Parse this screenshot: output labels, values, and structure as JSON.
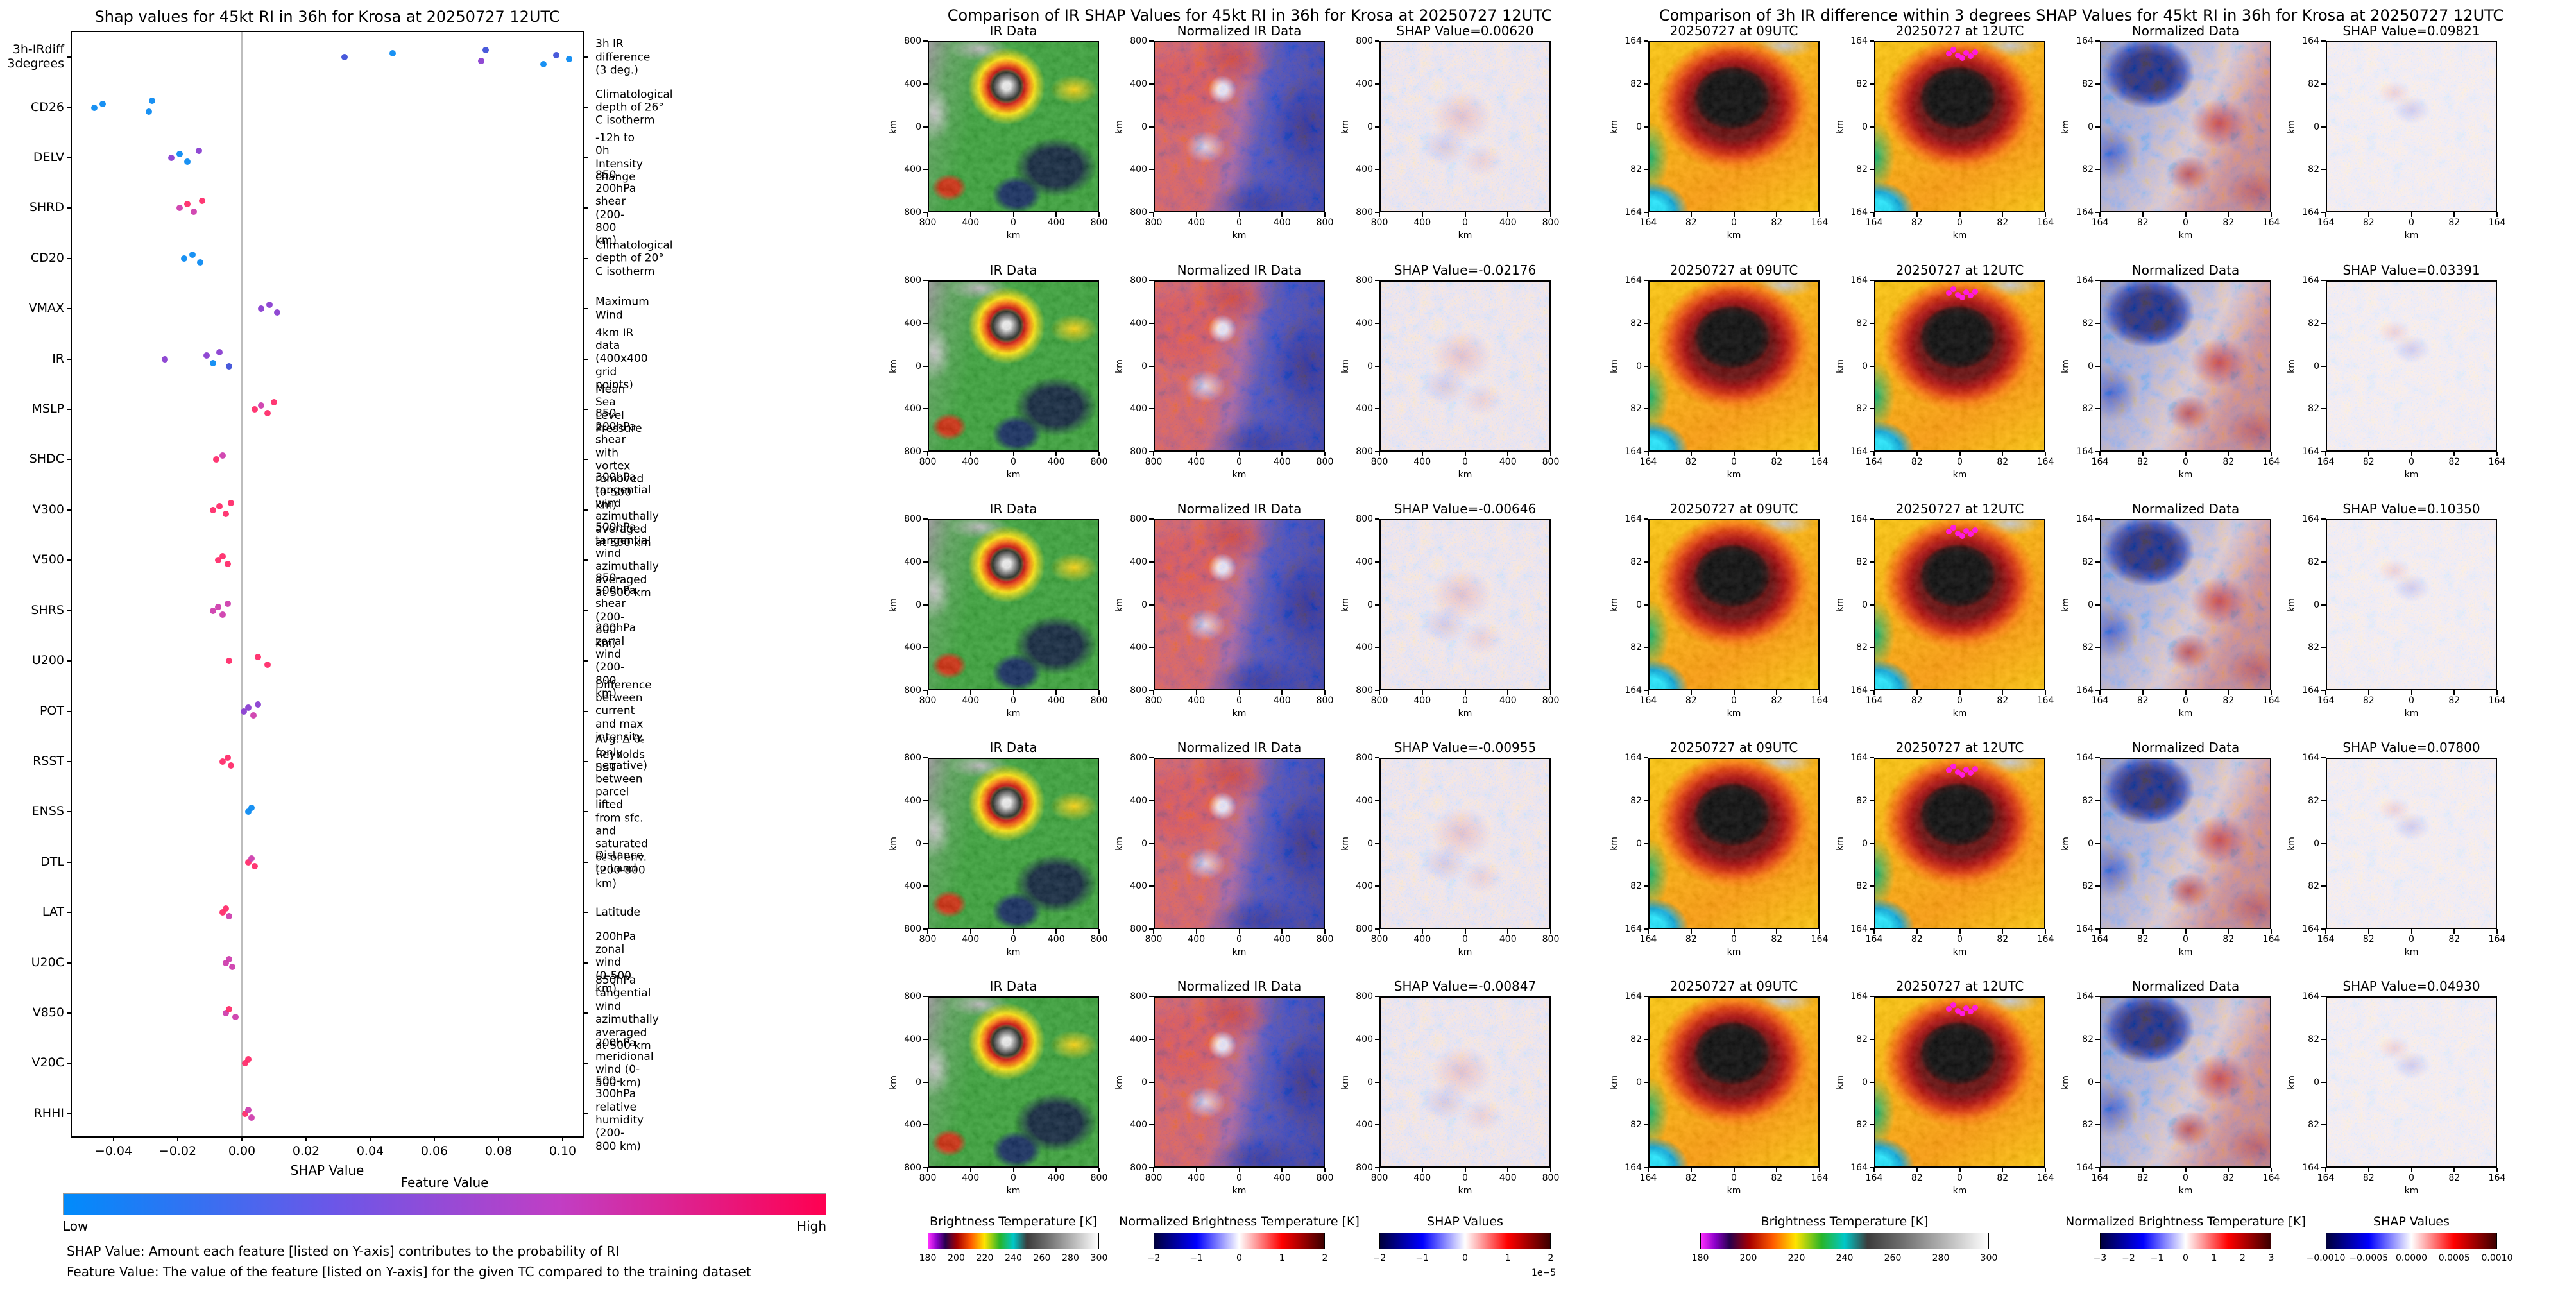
{
  "beeswarm": {
    "title": "Shap values for 45kt RI in 36h for Krosa at 20250727 12UTC",
    "xlabel": "SHAP Value",
    "xmin": -0.053,
    "xmax": 0.107,
    "xticks": [
      [
        "−0.04",
        -0.04
      ],
      [
        "−0.02",
        -0.02
      ],
      [
        "0.00",
        0
      ],
      [
        "0.02",
        0.02
      ],
      [
        "0.04",
        0.04
      ],
      [
        "0.06",
        0.06
      ],
      [
        "0.08",
        0.08
      ],
      [
        "0.10",
        0.1
      ]
    ],
    "palette": {
      "b": "#0d8bf2",
      "n": "#3f51d9",
      "p": "#8a3fd1",
      "m": "#cf3fae",
      "r": "#ff2d6b"
    },
    "features": [
      {
        "code": "3h-IRdiff\n3degrees",
        "desc": "3h IR difference (3 deg.)",
        "dots": [
          [
            0.032,
            "n"
          ],
          [
            0.047,
            "b"
          ],
          [
            0.0745,
            "p"
          ],
          [
            0.076,
            "n"
          ],
          [
            0.094,
            "b"
          ],
          [
            0.098,
            "n"
          ],
          [
            0.102,
            "b"
          ]
        ]
      },
      {
        "code": "CD26",
        "desc": "Climatological depth of 26° C isotherm",
        "dots": [
          [
            -0.046,
            "b"
          ],
          [
            -0.0435,
            "b"
          ],
          [
            -0.029,
            "b"
          ],
          [
            -0.028,
            "b"
          ]
        ]
      },
      {
        "code": "DELV",
        "desc": "-12h to 0h Intensity change",
        "dots": [
          [
            -0.022,
            "p"
          ],
          [
            -0.0195,
            "b"
          ],
          [
            -0.017,
            "b"
          ],
          [
            -0.0135,
            "p"
          ]
        ]
      },
      {
        "code": "SHRD",
        "desc": "850-200hPa shear (200-800 km)",
        "dots": [
          [
            -0.0195,
            "m"
          ],
          [
            -0.017,
            "r"
          ],
          [
            -0.015,
            "m"
          ],
          [
            -0.0125,
            "r"
          ]
        ]
      },
      {
        "code": "CD20",
        "desc": "Climatological depth of 20° C isotherm",
        "dots": [
          [
            -0.018,
            "b"
          ],
          [
            -0.0155,
            "b"
          ],
          [
            -0.013,
            "b"
          ]
        ]
      },
      {
        "code": "VMAX",
        "desc": "Maximum Wind",
        "dots": [
          [
            0.006,
            "p"
          ],
          [
            0.0085,
            "p"
          ],
          [
            0.011,
            "p"
          ]
        ]
      },
      {
        "code": "IR",
        "desc": "4km IR data (400x400 grid points)",
        "dots": [
          [
            -0.024,
            "p"
          ],
          [
            -0.011,
            "p"
          ],
          [
            -0.009,
            "b"
          ],
          [
            -0.007,
            "p"
          ],
          [
            -0.004,
            "n"
          ]
        ]
      },
      {
        "code": "MSLP",
        "desc": "Mean Sea Level Pressure",
        "dots": [
          [
            0.004,
            "r"
          ],
          [
            0.006,
            "m"
          ],
          [
            0.008,
            "r"
          ],
          [
            0.01,
            "r"
          ]
        ]
      },
      {
        "code": "SHDC",
        "desc": "850-200hPa shear with\nvortex removed (0-500 km)",
        "dots": [
          [
            -0.008,
            "r"
          ],
          [
            -0.006,
            "m"
          ]
        ]
      },
      {
        "code": "V300",
        "desc": "300hPa tangential wind azimuthally\naveraged at 500 km",
        "dots": [
          [
            -0.009,
            "r"
          ],
          [
            -0.007,
            "r"
          ],
          [
            -0.005,
            "r"
          ],
          [
            -0.0035,
            "r"
          ]
        ]
      },
      {
        "code": "V500",
        "desc": "500hPa tangential wind azimuthally\naveraged at 500 km",
        "dots": [
          [
            -0.0075,
            "r"
          ],
          [
            -0.006,
            "r"
          ],
          [
            -0.0045,
            "r"
          ]
        ]
      },
      {
        "code": "SHRS",
        "desc": "850-500hPa shear (200-800 km)",
        "dots": [
          [
            -0.009,
            "m"
          ],
          [
            -0.0075,
            "m"
          ],
          [
            -0.006,
            "m"
          ],
          [
            -0.0045,
            "m"
          ]
        ]
      },
      {
        "code": "U200",
        "desc": "200hPa zonal wind (200-800 km)",
        "dots": [
          [
            -0.004,
            "r"
          ],
          [
            0.005,
            "r"
          ],
          [
            0.008,
            "r"
          ]
        ]
      },
      {
        "code": "POT",
        "desc": "Difference between current and max intensity",
        "dots": [
          [
            0.0005,
            "p"
          ],
          [
            0.002,
            "p"
          ],
          [
            0.0035,
            "m"
          ],
          [
            0.005,
            "p"
          ]
        ]
      },
      {
        "code": "RSST",
        "desc": "Reynolds SST",
        "dots": [
          [
            -0.006,
            "r"
          ],
          [
            -0.0045,
            "r"
          ],
          [
            -0.0035,
            "r"
          ]
        ]
      },
      {
        "code": "ENSS",
        "desc": "Avg. Δ θₑ (only negative) between parcel lifted\nfrom sfc. and saturated θₑ of env. (200-800 km)",
        "dots": [
          [
            0.002,
            "b"
          ],
          [
            0.003,
            "b"
          ]
        ]
      },
      {
        "code": "DTL",
        "desc": "Distance to Land",
        "dots": [
          [
            0.002,
            "r"
          ],
          [
            0.003,
            "m"
          ],
          [
            0.004,
            "r"
          ]
        ]
      },
      {
        "code": "LAT",
        "desc": "Latitude",
        "dots": [
          [
            -0.006,
            "r"
          ],
          [
            -0.005,
            "r"
          ],
          [
            -0.004,
            "m"
          ]
        ]
      },
      {
        "code": "U20C",
        "desc": "200hPa zonal wind (0-500 km)",
        "dots": [
          [
            -0.005,
            "m"
          ],
          [
            -0.004,
            "m"
          ],
          [
            -0.003,
            "m"
          ]
        ]
      },
      {
        "code": "V850",
        "desc": "850hPa tangential wind azimuthally\naveraged at 500 km",
        "dots": [
          [
            -0.005,
            "m"
          ],
          [
            -0.004,
            "r"
          ],
          [
            -0.002,
            "m"
          ]
        ]
      },
      {
        "code": "V20C",
        "desc": "200hPa meridional wind (0-500 km)",
        "dots": [
          [
            0.001,
            "r"
          ],
          [
            0.002,
            "r"
          ]
        ]
      },
      {
        "code": "RHHI",
        "desc": "500-300hPa relative humidity (200-800 km)",
        "dots": [
          [
            0.001,
            "r"
          ],
          [
            0.002,
            "m"
          ],
          [
            0.003,
            "m"
          ]
        ]
      }
    ],
    "colorbar": {
      "title": "Feature Value",
      "low": "Low",
      "high": "High"
    },
    "footnotes": [
      "SHAP Value: Amount each feature [listed on Y-axis] contributes to the probability of RI",
      "Feature Value: The value of the feature [listed on Y-axis] for the given TC compared to the training dataset"
    ]
  },
  "ir_panel": {
    "title": "Comparison of IR SHAP Values for 45kt RI in 36h for Krosa at 20250727 12UTC",
    "col_titles": [
      "IR Data",
      "Normalized IR Data"
    ],
    "shap_titles": [
      "SHAP Value=0.00620",
      "SHAP Value=-0.02176",
      "SHAP Value=-0.00646",
      "SHAP Value=-0.00955",
      "SHAP Value=-0.00847"
    ],
    "ticks": [
      "800",
      "400",
      "0",
      "400",
      "800"
    ],
    "axis_unit": "km",
    "colorbars": [
      {
        "label": "Brightness Temperature [K]",
        "ticks": [
          "180",
          "200",
          "220",
          "240",
          "260",
          "280",
          "300"
        ]
      },
      {
        "label": "Normalized Brightness Temperature [K]",
        "ticks": [
          "−2",
          "−1",
          "0",
          "1",
          "2"
        ]
      },
      {
        "label": "SHAP Values",
        "ticks": [
          "−2",
          "−1",
          "0",
          "1",
          "2"
        ],
        "exp": "1e−5"
      }
    ]
  },
  "irdiff_panel": {
    "title": "Comparison of 3h IR difference within 3 degrees SHAP Values for 45kt RI in 36h for Krosa at 20250727 12UTC",
    "col_titles": [
      "20250727 at 09UTC",
      "20250727 at 12UTC",
      "Normalized Data"
    ],
    "shap_titles": [
      "SHAP Value=0.09821",
      "SHAP Value=0.03391",
      "SHAP Value=0.10350",
      "SHAP Value=0.07800",
      "SHAP Value=0.04930"
    ],
    "ticks": [
      "164",
      "82",
      "0",
      "82",
      "164"
    ],
    "axis_unit": "km",
    "colorbars": [
      {
        "label": "Brightness Temperature [K]",
        "ticks": [
          "180",
          "200",
          "220",
          "240",
          "260",
          "280",
          "300"
        ]
      },
      {
        "label": "Normalized Brightness Temperature [K]",
        "ticks": [
          "−3",
          "−2",
          "−1",
          "0",
          "1",
          "2",
          "3"
        ]
      },
      {
        "label": "SHAP Values",
        "ticks": [
          "−0.0010",
          "−0.0005",
          "0.0000",
          "0.0005",
          "0.0010"
        ]
      }
    ]
  }
}
